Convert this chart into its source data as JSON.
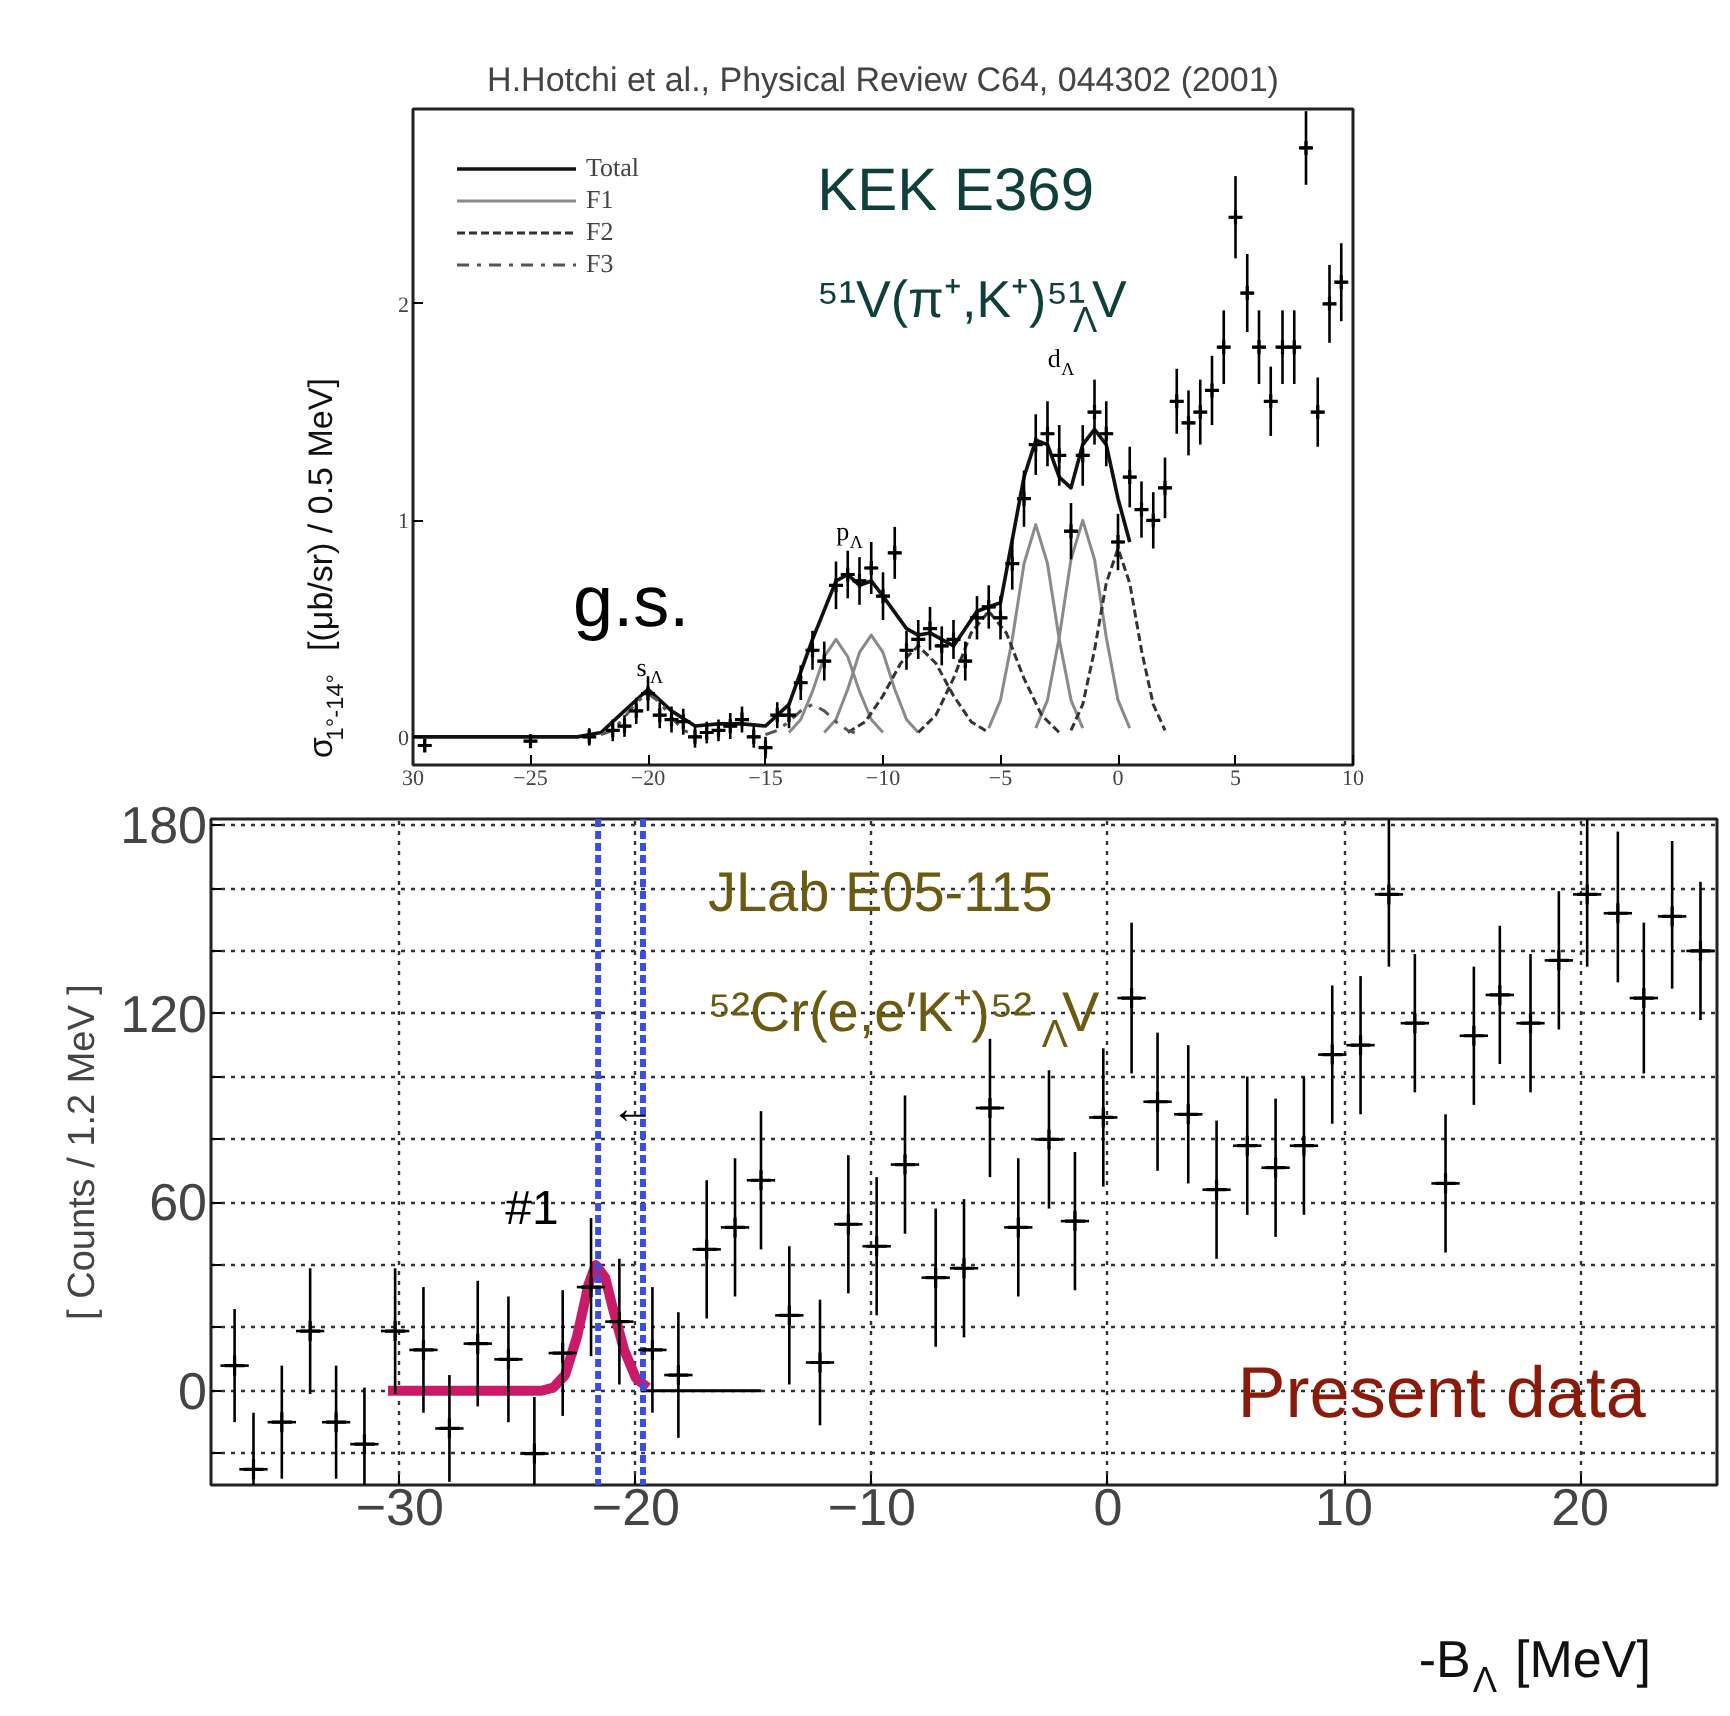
{
  "chart_data": [
    {
      "type": "scatter",
      "title": "H.Hotchi et al., Physical Review C64, 044302 (2001)",
      "ylabel": "σ$_{1°-14°}$ [(μb/sr) / 0.5 MeV]",
      "xlim": [
        -30,
        10
      ],
      "ylim": [
        -0.13,
        2.9
      ],
      "xticks": [
        {
          "value": -30,
          "label": "30"
        },
        -25,
        -20,
        -15,
        -10,
        -5,
        0,
        5,
        10
      ],
      "yticks": [
        0,
        1,
        2
      ],
      "grid": false,
      "legend": "top left",
      "annotations": [
        "KEK E369",
        "⁵¹V(π⁺,K⁺)⁵¹$_{Λ}$V",
        "g.s.",
        "s$_{Λ}$",
        "p$_{Λ}$",
        "d$_{Λ}$"
      ],
      "series": [
        {
          "marker": "cross",
          "color": "#000000",
          "x": [
            -29.5,
            -25,
            -22.5,
            -21.5,
            -21,
            -20.5,
            -20,
            -19.5,
            -19,
            -18.5,
            -18,
            -17.5,
            -17,
            -16.5,
            -16,
            -15.5,
            -15,
            -14.5,
            -14,
            -13.5,
            -13,
            -12.5,
            -12,
            -11.5,
            -11,
            -10.5,
            -10,
            -9.5,
            -9,
            -8.5,
            -8,
            -7.5,
            -7,
            -6.5,
            -6,
            -5.5,
            -5,
            -4.5,
            -4,
            -3.5,
            -3,
            -2.5,
            -2,
            -1.5,
            -1,
            -0.5,
            0,
            0.5,
            1,
            1.5,
            2,
            2.5,
            3,
            3.5,
            4,
            4.5,
            5,
            5.5,
            6,
            6.5,
            7,
            7.5,
            8,
            8.5,
            9,
            9.5
          ],
          "values": [
            -0.04,
            -0.02,
            0.0,
            0.03,
            0.05,
            0.12,
            0.2,
            0.1,
            0.08,
            0.07,
            0.0,
            0.02,
            0.03,
            0.05,
            0.08,
            0.0,
            -0.05,
            0.1,
            0.1,
            0.25,
            0.4,
            0.35,
            0.7,
            0.75,
            0.72,
            0.78,
            0.65,
            0.85,
            0.4,
            0.45,
            0.5,
            0.42,
            0.45,
            0.35,
            0.55,
            0.6,
            0.55,
            0.8,
            1.1,
            1.35,
            1.4,
            1.3,
            0.95,
            1.3,
            1.5,
            1.4,
            0.9,
            1.2,
            1.05,
            1.0,
            1.15,
            1.55,
            1.45,
            1.5,
            1.6,
            1.8,
            2.4,
            2.05,
            1.8,
            1.55,
            1.8,
            1.8,
            2.72,
            1.5,
            2.0,
            2.1
          ],
          "errors": [
            0.03,
            0.03,
            0.04,
            0.05,
            0.05,
            0.06,
            0.08,
            0.06,
            0.06,
            0.06,
            0.05,
            0.05,
            0.05,
            0.06,
            0.06,
            0.05,
            0.05,
            0.06,
            0.06,
            0.08,
            0.09,
            0.09,
            0.11,
            0.11,
            0.11,
            0.12,
            0.11,
            0.12,
            0.09,
            0.09,
            0.1,
            0.09,
            0.09,
            0.09,
            0.1,
            0.1,
            0.1,
            0.12,
            0.13,
            0.14,
            0.15,
            0.14,
            0.13,
            0.14,
            0.15,
            0.15,
            0.13,
            0.14,
            0.13,
            0.13,
            0.14,
            0.15,
            0.15,
            0.15,
            0.16,
            0.17,
            0.19,
            0.18,
            0.17,
            0.16,
            0.17,
            0.17,
            0.17,
            0.16,
            0.18,
            0.18
          ],
          "xerrors": [
            0.25,
            0.25,
            0.25,
            0.25,
            0.25,
            0.25,
            0.25,
            0.25,
            0.25,
            0.25,
            0.25,
            0.25,
            0.25,
            0.25,
            0.25,
            0.25,
            0.25,
            0.25,
            0.25,
            0.25,
            0.25,
            0.25,
            0.25,
            0.25,
            0.25,
            0.25,
            0.25,
            0.25,
            0.25,
            0.25,
            0.25,
            0.25,
            0.25,
            0.25,
            0.25,
            0.25,
            0.25,
            0.25,
            0.25,
            0.25,
            0.25,
            0.25,
            0.25,
            0.25,
            0.25,
            0.25,
            0.25,
            0.25,
            0.25,
            0.25,
            0.25,
            0.25,
            0.25,
            0.25,
            0.25,
            0.25,
            0.25,
            0.25,
            0.25,
            0.25,
            0.25,
            0.25,
            0.25,
            0.25,
            0.25,
            0.25
          ]
        },
        {
          "type": "line",
          "name": "Total",
          "color": "#111111",
          "line_style": "solid",
          "x": [
            -30,
            -23,
            -22,
            -21,
            -20,
            -19,
            -18,
            -17,
            -16,
            -15,
            -14,
            -13,
            -12,
            -11.5,
            -11,
            -10.5,
            -10,
            -9,
            -8.5,
            -8,
            -7,
            -6,
            -5,
            -4,
            -3.5,
            -3,
            -2.5,
            -2,
            -1.5,
            -1,
            -0.5,
            0,
            0.5
          ],
          "values": [
            0,
            0,
            0.02,
            0.12,
            0.22,
            0.12,
            0.05,
            0.06,
            0.06,
            0.05,
            0.15,
            0.45,
            0.72,
            0.75,
            0.7,
            0.72,
            0.65,
            0.5,
            0.47,
            0.48,
            0.42,
            0.58,
            0.62,
            1.2,
            1.37,
            1.35,
            1.2,
            1.15,
            1.35,
            1.42,
            1.35,
            1.1,
            0.9
          ]
        },
        {
          "type": "line",
          "name": "F1",
          "color": "#8a8a8a",
          "line_style": "solid",
          "x": [
            -14,
            -13.5,
            -13,
            -12.5,
            -12,
            -11.5,
            -11,
            -10.5,
            -10
          ],
          "values": [
            0.02,
            0.08,
            0.21,
            0.37,
            0.45,
            0.37,
            0.21,
            0.08,
            0.02
          ]
        },
        {
          "type": "line",
          "color": "#8a8a8a",
          "line_style": "solid",
          "x": [
            -12.5,
            -12,
            -11.5,
            -11,
            -10.5,
            -10,
            -9.5,
            -9,
            -8.5
          ],
          "values": [
            0.02,
            0.08,
            0.22,
            0.39,
            0.47,
            0.39,
            0.22,
            0.08,
            0.02
          ]
        },
        {
          "type": "line",
          "color": "#8a8a8a",
          "line_style": "solid",
          "x": [
            -5.5,
            -5,
            -4.5,
            -4,
            -3.5,
            -3,
            -2.5,
            -2,
            -1.5
          ],
          "values": [
            0.04,
            0.17,
            0.45,
            0.8,
            0.98,
            0.8,
            0.45,
            0.17,
            0.04
          ]
        },
        {
          "type": "line",
          "color": "#8a8a8a",
          "line_style": "solid",
          "x": [
            -3.5,
            -3,
            -2.5,
            -2,
            -1.5,
            -1,
            -0.5,
            0,
            0.5
          ],
          "values": [
            0.04,
            0.17,
            0.46,
            0.82,
            1.0,
            0.82,
            0.46,
            0.17,
            0.04
          ]
        },
        {
          "type": "line",
          "name": "F2",
          "color": "#333333",
          "line_style": "dashed",
          "x": [
            -11.5,
            -10.75,
            -10,
            -9.25,
            -8.5,
            -7.75,
            -7,
            -6.25,
            -5.5
          ],
          "values": [
            0.02,
            0.07,
            0.19,
            0.34,
            0.42,
            0.34,
            0.19,
            0.07,
            0.02
          ]
        },
        {
          "type": "line",
          "color": "#333333",
          "line_style": "dashed",
          "x": [
            -8.5,
            -7.75,
            -7,
            -6.25,
            -5.5,
            -4.75,
            -4,
            -3.25,
            -2.5
          ],
          "values": [
            0.02,
            0.1,
            0.27,
            0.48,
            0.58,
            0.48,
            0.27,
            0.1,
            0.02
          ]
        },
        {
          "type": "line",
          "color": "#333333",
          "line_style": "dashed",
          "x": [
            -2,
            -1.5,
            -1,
            -0.5,
            0,
            0.5,
            1,
            1.5,
            2
          ],
          "values": [
            0.03,
            0.15,
            0.4,
            0.71,
            0.87,
            0.71,
            0.4,
            0.15,
            0.03
          ]
        },
        {
          "type": "line",
          "name": "F3",
          "color": "#555555",
          "line_style": "dotted",
          "x": [
            -22,
            -21.5,
            -21,
            -20.5,
            -20,
            -19.5,
            -19,
            -18.5,
            -18
          ],
          "values": [
            0.01,
            0.03,
            0.09,
            0.16,
            0.2,
            0.16,
            0.09,
            0.03,
            0.01
          ]
        },
        {
          "type": "line",
          "color": "#555555",
          "line_style": "dotted",
          "x": [
            -15,
            -14.5,
            -14,
            -13.5,
            -13,
            -12.5,
            -12,
            -11.5,
            -11
          ],
          "values": [
            0.01,
            0.03,
            0.07,
            0.12,
            0.15,
            0.12,
            0.07,
            0.03,
            0.01
          ]
        }
      ]
    },
    {
      "type": "scatter",
      "xlabel": "-B$_{Λ}$ [MeV]",
      "ylabel": "[ Counts / 1.2 MeV ]",
      "xlim": [
        -38,
        25.8
      ],
      "ylim": [
        -30,
        182
      ],
      "xticks": [
        -30,
        -20,
        -10,
        0,
        10,
        20
      ],
      "yticks": [
        {
          "value": -20,
          "label": null
        },
        0,
        {
          "value": 20,
          "label": null
        },
        {
          "value": 40,
          "label": null
        },
        60,
        {
          "value": 80,
          "label": null
        },
        {
          "value": 100,
          "label": null
        },
        120,
        {
          "value": 140,
          "label": null
        },
        {
          "value": 160,
          "label": null
        },
        180
      ],
      "grid": true,
      "ref_lines": [
        {
          "axis": "x",
          "value": -21.6,
          "color": "#3a4fe0",
          "line_style": "dashed"
        },
        {
          "axis": "x",
          "value": -19.7,
          "color": "#3a4fe0",
          "line_style": "dashed"
        }
      ],
      "annotations": [
        "JLab E05-115",
        "⁵²Cr(e,e′K⁺)⁵²$_{Λ}$V",
        "Present data",
        "#1",
        "←"
      ],
      "series": [
        {
          "marker": "cross",
          "color": "#000000",
          "x": [
            -37,
            -36.2,
            -35,
            -33.8,
            -32.7,
            -31.5,
            -30.2,
            -29,
            -27.9,
            -26.7,
            -25.4,
            -24.3,
            -23.1,
            -21.9,
            -20.7,
            -19.3,
            -18.2,
            -17,
            -15.8,
            -14.7,
            -13.5,
            -12.2,
            -11,
            -9.8,
            -8.6,
            -7.3,
            -6.1,
            -5,
            -3.8,
            -2.5,
            -1.4,
            -0.2,
            1.0,
            2.1,
            3.4,
            4.6,
            5.9,
            7.1,
            8.3,
            9.5,
            10.7,
            11.9,
            13.0,
            14.3,
            15.5,
            16.6,
            17.9,
            19.1,
            20.3,
            21.6,
            22.7,
            23.9,
            25.1
          ],
          "values": [
            8,
            -25,
            -10,
            19,
            -10,
            -17,
            19,
            13,
            -12,
            15,
            10,
            -20,
            12,
            33,
            22,
            13,
            5,
            45,
            52,
            67,
            24,
            9,
            53,
            46,
            72,
            36,
            39,
            90,
            52,
            80,
            54,
            87,
            125,
            92,
            88,
            64,
            78,
            71,
            78,
            107,
            110,
            158,
            117,
            66,
            113,
            126,
            117,
            137,
            158,
            152,
            125,
            151,
            140
          ],
          "errors": [
            18,
            [
              -30,
              -7
            ],
            18,
            20,
            18,
            [
              -30,
              1
            ],
            20,
            20,
            17,
            20,
            20,
            [
              -30,
              -2
            ],
            20,
            22,
            20,
            20,
            20,
            22,
            22,
            22,
            22,
            20,
            22,
            22,
            22,
            22,
            22,
            22,
            22,
            22,
            22,
            22,
            24,
            22,
            22,
            22,
            22,
            22,
            22,
            22,
            22,
            [
              135,
              182
            ],
            22,
            22,
            22,
            22,
            22,
            22,
            [
              135,
              182
            ],
            [
              130,
              178
            ],
            24,
            [
              128,
              175
            ],
            22
          ],
          "xerrors": [
            0.6,
            0.6,
            0.6,
            0.6,
            0.6,
            0.6,
            0.6,
            0.6,
            0.6,
            0.6,
            0.6,
            0.6,
            0.6,
            0.6,
            0.6,
            0.6,
            0.6,
            0.6,
            0.6,
            0.6,
            0.6,
            0.6,
            0.6,
            0.6,
            0.6,
            0.6,
            0.6,
            0.6,
            0.6,
            0.6,
            0.6,
            0.6,
            0.6,
            0.6,
            0.6,
            0.6,
            0.6,
            0.6,
            0.6,
            0.6,
            0.6,
            0.6,
            0.6,
            0.6,
            0.6,
            0.6,
            0.6,
            0.6,
            0.6,
            0.6,
            0.6,
            0.6,
            0.6
          ]
        },
        {
          "type": "line",
          "color": "#000000",
          "line_style": "solid",
          "x": [
            -19.8,
            -14.7
          ],
          "values": [
            0,
            0
          ]
        },
        {
          "type": "line",
          "color": "#cc1a6b",
          "line_style": "solid",
          "x": [
            -30.5,
            -24,
            -23.5,
            -23,
            -22.5,
            -22,
            -21.7,
            -21.3,
            -21,
            -20.5,
            -20,
            -19.5
          ],
          "values": [
            0,
            0,
            1,
            5,
            17,
            34,
            40,
            36,
            27,
            13,
            4,
            1
          ]
        }
      ]
    }
  ]
}
